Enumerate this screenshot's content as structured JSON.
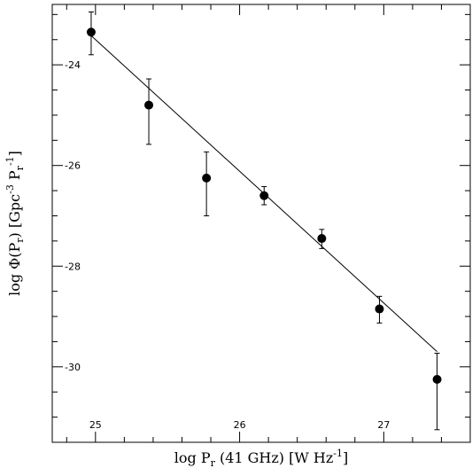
{
  "chart_data": {
    "type": "scatter",
    "xlabel": {
      "main": "log P",
      "sub": "r",
      "rest": " (41 GHz) [W Hz",
      "sup": "-1",
      "end": "]"
    },
    "ylabel": {
      "p1": "log Φ(P",
      "sub1": "r",
      "p2": ") [Gpc",
      "sup1": "-3",
      "p3": " P",
      "sub2": "r",
      "sup2": "-1",
      "p4": "]"
    },
    "xlim": [
      24.7,
      27.6
    ],
    "ylim": [
      -31.5,
      -22.8
    ],
    "xticks": [
      25,
      26,
      27
    ],
    "xtick_labels": [
      "25",
      "26",
      "27"
    ],
    "yticks": [
      -24,
      -26,
      -28,
      -30
    ],
    "ytick_labels": [
      "-24",
      "-26",
      "-28",
      "-30"
    ],
    "points": [
      {
        "x": 24.97,
        "y": -23.35,
        "err_low": 0.45,
        "err_high": 0.4
      },
      {
        "x": 25.37,
        "y": -24.8,
        "err_low": 0.78,
        "err_high": 0.52
      },
      {
        "x": 25.77,
        "y": -26.25,
        "err_low": 0.75,
        "err_high": 0.52
      },
      {
        "x": 26.17,
        "y": -26.6,
        "err_low": 0.18,
        "err_high": 0.18
      },
      {
        "x": 26.57,
        "y": -27.45,
        "err_low": 0.2,
        "err_high": 0.18
      },
      {
        "x": 26.97,
        "y": -28.85,
        "err_low": 0.28,
        "err_high": 0.25
      },
      {
        "x": 27.37,
        "y": -30.25,
        "err_low": 1.0,
        "err_high": 0.52
      }
    ],
    "fit_line": {
      "x": [
        24.97,
        27.37
      ],
      "y": [
        -23.42,
        -29.7
      ]
    },
    "grid": false,
    "legend": "none"
  }
}
